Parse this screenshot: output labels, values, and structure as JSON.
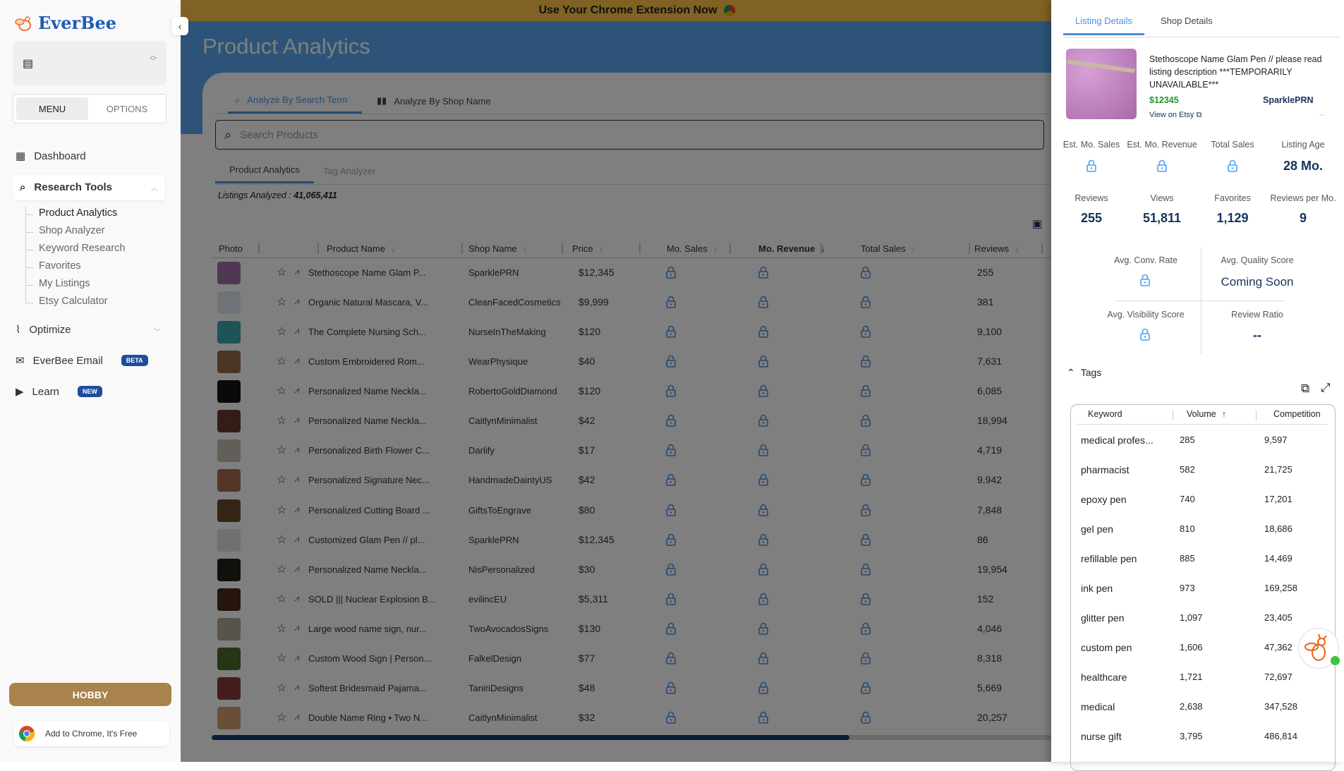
{
  "sidebar": {
    "brand": "EverBee",
    "toggle": {
      "menu": "MENU",
      "options": "OPTIONS"
    },
    "nav": {
      "dashboard": "Dashboard",
      "research_tools": "Research Tools",
      "optimize": "Optimize",
      "email": "EverBee Email",
      "email_badge": "BETA",
      "learn": "Learn",
      "learn_badge": "NEW"
    },
    "sub_items": [
      "Product Analytics",
      "Shop Analyzer",
      "Keyword Research",
      "Favorites",
      "My Listings",
      "Etsy Calculator"
    ],
    "plan_button": "HOBBY",
    "add_chrome": "Add to Chrome, It's Free"
  },
  "main": {
    "banner": "Use Your Chrome Extension Now",
    "title": "Product Analytics",
    "tabs": [
      "Analyze By Search Term",
      "Analyze By Shop Name"
    ],
    "search_placeholder": "Search Products",
    "subtabs": [
      "Product Analytics",
      "Tag Analyzer"
    ],
    "listings_label": "Listings Analyzed : ",
    "listings_value": "41,065,411",
    "columns": [
      "Photo",
      "",
      "Product Name",
      "Shop Name",
      "Price",
      "Mo. Sales",
      "Mo. Revenue",
      "Total Sales",
      "Reviews"
    ],
    "sorted_column": "Mo. Revenue",
    "rows": [
      {
        "name": "Stethoscope Name Glam P...",
        "shop": "SparklePRN",
        "price": "$12,345",
        "reviews": "255",
        "thumb": "#a070a8"
      },
      {
        "name": "Organic Natural Mascara, V...",
        "shop": "CleanFacedCosmetics",
        "price": "$9,999",
        "reviews": "381",
        "thumb": "#dfe6ee"
      },
      {
        "name": "The Complete Nursing Sch...",
        "shop": "NurseInTheMaking",
        "price": "$120",
        "reviews": "9,100",
        "thumb": "#3aa8b0"
      },
      {
        "name": "Custom Embroidered Rom...",
        "shop": "WearPhysique",
        "price": "$40",
        "reviews": "7,631",
        "thumb": "#9a6a4a"
      },
      {
        "name": "Personalized Name Neckla...",
        "shop": "RobertoGoldDiamond",
        "price": "$120",
        "reviews": "6,085",
        "thumb": "#151515"
      },
      {
        "name": "Personalized Name Neckla...",
        "shop": "CaitlynMinimalist",
        "price": "$42",
        "reviews": "18,994",
        "thumb": "#6a3a2a"
      },
      {
        "name": "Personalized Birth Flower C...",
        "shop": "Darlify",
        "price": "$17",
        "reviews": "4,719",
        "thumb": "#c8bcb0"
      },
      {
        "name": "Personalized Signature Nec...",
        "shop": "HandmadeDaintyUS",
        "price": "$42",
        "reviews": "9,942",
        "thumb": "#a86a50"
      },
      {
        "name": "Personalized Cutting Board ...",
        "shop": "GiftsToEngrave",
        "price": "$80",
        "reviews": "7,848",
        "thumb": "#6a4a2a"
      },
      {
        "name": "Customized Glam Pen // pl...",
        "shop": "SparklePRN",
        "price": "$12,345",
        "reviews": "86",
        "thumb": "#e0e0e4"
      },
      {
        "name": "Personalized Name Neckla...",
        "shop": "NisPersonalized",
        "price": "$30",
        "reviews": "19,954",
        "thumb": "#202018"
      },
      {
        "name": "SOLD ||| Nuclear Explosion B...",
        "shop": "evilincEU",
        "price": "$5,311",
        "reviews": "152",
        "thumb": "#4a2a1a"
      },
      {
        "name": "Large wood name sign, nur...",
        "shop": "TwoAvocadosSigns",
        "price": "$130",
        "reviews": "4,046",
        "thumb": "#b0a898"
      },
      {
        "name": "Custom Wood Sign | Person...",
        "shop": "FalkelDesign",
        "price": "$77",
        "reviews": "8,318",
        "thumb": "#4a6a2a"
      },
      {
        "name": "Softest Bridesmaid Pajama...",
        "shop": "TaniriDesigns",
        "price": "$48",
        "reviews": "5,669",
        "thumb": "#8a3a3a"
      },
      {
        "name": "Double Name Ring • Two N...",
        "shop": "CaitlynMinimalist",
        "price": "$32",
        "reviews": "20,257",
        "thumb": "#d0a070"
      }
    ]
  },
  "panel": {
    "tabs": [
      "Listing Details",
      "Shop Details"
    ],
    "listing": {
      "title": "Stethoscope Name Glam Pen // please read listing description ***TEMPORARILY UNAVAILABLE***",
      "price": "$12345",
      "shop": "SparklePRN",
      "view_link": "View on Etsy",
      "extra": "--"
    },
    "stats1": [
      {
        "label": "Est. Mo. Sales",
        "value": null
      },
      {
        "label": "Est. Mo. Revenue",
        "value": null
      },
      {
        "label": "Total Sales",
        "value": null
      },
      {
        "label": "Listing Age",
        "value": "28 Mo."
      }
    ],
    "stats2": [
      {
        "label": "Reviews",
        "value": "255"
      },
      {
        "label": "Views",
        "value": "51,811"
      },
      {
        "label": "Favorites",
        "value": "1,129"
      },
      {
        "label": "Reviews per Mo.",
        "value": "9"
      }
    ],
    "scores": {
      "conv_label": "Avg. Conv. Rate",
      "quality_label": "Avg. Quality Score",
      "quality_value": "Coming Soon",
      "visibility_label": "Avg. Visibility Score",
      "ratio_label": "Review Ratio",
      "ratio_value": "--"
    },
    "tags_title": "Tags",
    "tag_columns": [
      "Keyword",
      "Volume",
      "Competition"
    ],
    "tags": [
      [
        "medical profes...",
        "285",
        "9,597"
      ],
      [
        "pharmacist",
        "582",
        "21,725"
      ],
      [
        "epoxy pen",
        "740",
        "17,201"
      ],
      [
        "gel pen",
        "810",
        "18,686"
      ],
      [
        "refillable pen",
        "885",
        "14,469"
      ],
      [
        "ink pen",
        "973",
        "169,258"
      ],
      [
        "glitter pen",
        "1,097",
        "23,405"
      ],
      [
        "custom pen",
        "1,606",
        "47,362"
      ],
      [
        "healthcare",
        "1,721",
        "72,697"
      ],
      [
        "medical",
        "2,638",
        "347,528"
      ],
      [
        "nurse gift",
        "3,795",
        "486,814"
      ]
    ]
  },
  "colors": {
    "accent": "#4a90e2",
    "navy": "#16325c",
    "price_green": "#1a9a2a",
    "banner": "#fec448",
    "hobby": "#a8844c",
    "lock": "#4aa0f0"
  }
}
